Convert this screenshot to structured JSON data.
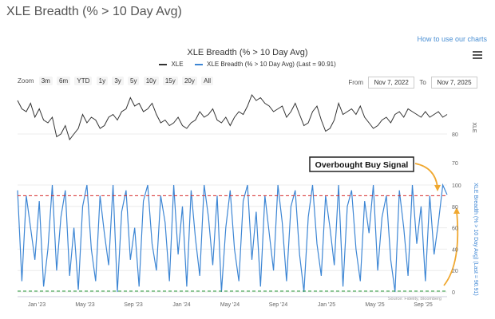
{
  "page_title": "XLE Breadth (% > 10 Day Avg)",
  "help_link": "How to use our charts",
  "range": {
    "from_label": "From",
    "from_value": "Nov 7, 2022",
    "to_label": "To",
    "to_value": "Nov 7, 2025"
  },
  "zoom": {
    "label": "Zoom",
    "buttons": [
      "3m",
      "6m",
      "YTD",
      "1y",
      "3y",
      "5y",
      "10y",
      "15y",
      "20y",
      "All"
    ]
  },
  "colors": {
    "xle": "#333333",
    "breadth": "#3d86d4",
    "red_line": "#d62b2b",
    "green_line": "#2e9b3e",
    "annotation_arrow": "#f0a830",
    "annotation_box": "#222222"
  },
  "chart_data": {
    "type": "line",
    "title": "XLE Breadth (% > 10 Day Avg)",
    "legend": [
      {
        "name": "XLE",
        "color": "#333333"
      },
      {
        "name": "XLE Breadth (% > 10 Day Avg) (Last = 90.91)",
        "color": "#3d86d4"
      }
    ],
    "x_ticks": [
      "Jan '23",
      "May '23",
      "Sep '23",
      "Jan '24",
      "May '24",
      "Sep '24",
      "Jan '25",
      "May '25",
      "Sep '25"
    ],
    "upper_panel": {
      "series": "XLE",
      "axis_label": "XLE",
      "y_ticks": [
        80
      ],
      "ylim": [
        72,
        96
      ],
      "values": [
        92,
        89,
        88,
        91,
        86,
        89,
        85,
        84,
        86,
        79,
        80,
        83,
        78,
        80,
        82,
        87,
        84,
        86,
        85,
        82,
        83,
        86,
        87,
        85,
        88,
        89,
        93,
        90,
        91,
        88,
        89,
        91,
        87,
        84,
        85,
        83,
        84,
        86,
        83,
        82,
        84,
        85,
        88,
        86,
        87,
        89,
        85,
        84,
        86,
        83,
        86,
        88,
        87,
        90,
        94,
        92,
        93,
        91,
        90,
        88,
        89,
        90,
        86,
        88,
        91,
        87,
        83,
        84,
        88,
        90,
        85,
        81,
        82,
        85,
        91,
        87,
        88,
        89,
        87,
        90,
        86,
        84,
        82,
        83,
        85,
        86,
        84,
        87,
        88,
        86,
        89,
        88,
        87,
        86,
        88,
        86,
        87,
        88,
        86,
        87
      ]
    },
    "lower_panel": {
      "series": "XLE Breadth (% > 10 Day Avg)",
      "axis_label": "XLE Breadth (% > 10 Day Avg) (Last = 90.91)",
      "last_value": 90.91,
      "y_ticks": [
        0,
        20,
        40,
        60,
        80,
        100
      ],
      "ylim": [
        0,
        100
      ],
      "upper_threshold": 90,
      "lower_threshold": 0,
      "values": [
        95,
        10,
        90,
        60,
        30,
        85,
        5,
        40,
        100,
        20,
        70,
        95,
        15,
        60,
        2,
        80,
        100,
        40,
        10,
        90,
        55,
        25,
        100,
        0,
        75,
        95,
        30,
        60,
        5,
        85,
        100,
        45,
        20,
        90,
        65,
        10,
        100,
        35,
        80,
        5,
        95,
        50,
        15,
        100,
        70,
        25,
        90,
        0,
        60,
        95,
        40,
        10,
        85,
        100,
        30,
        75,
        5,
        90,
        55,
        20,
        100,
        65,
        10,
        80,
        95,
        35,
        0,
        70,
        100,
        45,
        15,
        90,
        60,
        25,
        100,
        5,
        80,
        95,
        40,
        10,
        85,
        55,
        100,
        20,
        70,
        90,
        30,
        0,
        95,
        60,
        15,
        100,
        45,
        80,
        10,
        90,
        35,
        65,
        100,
        91
      ]
    },
    "annotations": [
      {
        "text": "Overbought Buy Signal"
      },
      {
        "text": "Source: Fidelity, Bloomberg"
      }
    ]
  }
}
